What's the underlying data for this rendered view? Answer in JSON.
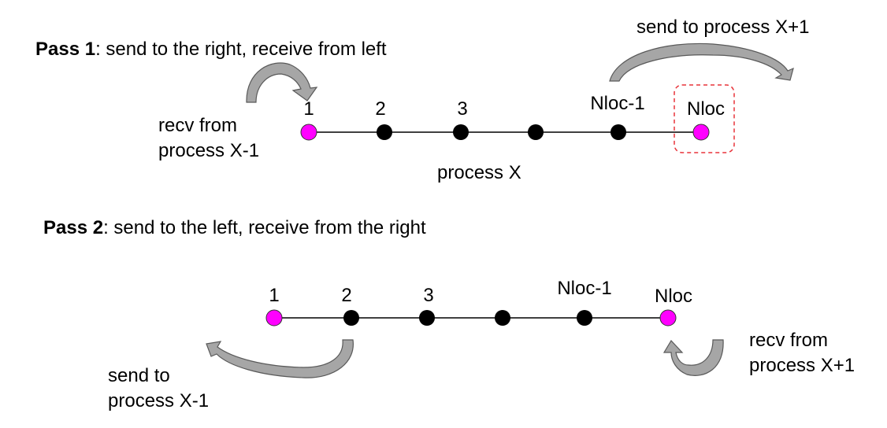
{
  "colors": {
    "line": "#404040",
    "interior_node": "#000000",
    "boundary_node": "#ff00ff",
    "arrow_fill": "#a6a6a6",
    "arrow_stroke": "#595959",
    "highlight_box": "#e8333a"
  },
  "pass1": {
    "title_bold": "Pass 1",
    "title_rest": ": send to the right, receive from left",
    "recv_line1": "recv from",
    "recv_line2": "process X-1",
    "send_label": "send to process X+1",
    "process_label": "process X",
    "nodes": [
      {
        "label": "1",
        "kind": "boundary"
      },
      {
        "label": "2",
        "kind": "interior"
      },
      {
        "label": "3",
        "kind": "interior"
      },
      {
        "label": "",
        "kind": "interior"
      },
      {
        "label": "Nloc-1",
        "kind": "interior"
      },
      {
        "label": "Nloc",
        "kind": "boundary"
      }
    ]
  },
  "pass2": {
    "title_bold": "Pass 2",
    "title_rest": ": send to the left, receive from the right",
    "send_line1": "send to",
    "send_line2": "process X-1",
    "recv_line1": "recv from",
    "recv_line2": "process X+1",
    "nodes": [
      {
        "label": "1",
        "kind": "boundary"
      },
      {
        "label": "2",
        "kind": "interior"
      },
      {
        "label": "3",
        "kind": "interior"
      },
      {
        "label": "",
        "kind": "interior"
      },
      {
        "label": "Nloc-1",
        "kind": "interior"
      },
      {
        "label": "Nloc",
        "kind": "boundary"
      }
    ]
  }
}
